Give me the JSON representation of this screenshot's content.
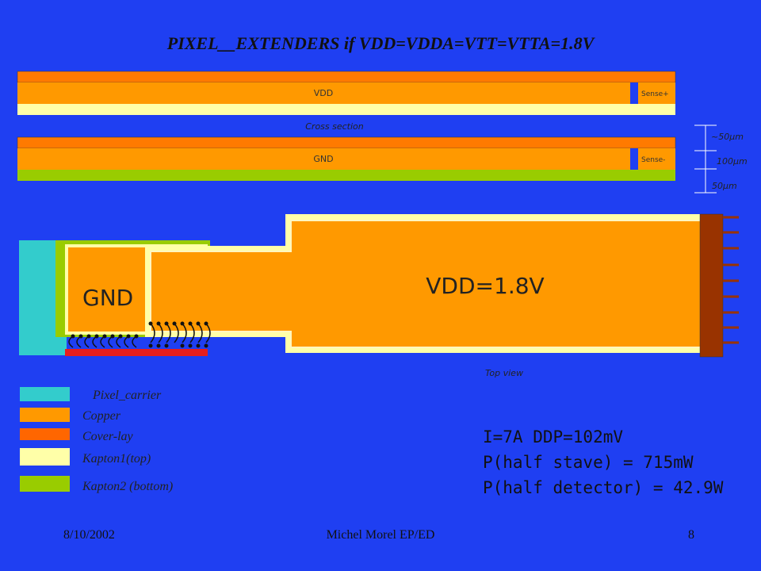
{
  "title": "PIXEL__EXTENDERS if VDD=VDDA=VTT=VTTA=1.8V",
  "cross_section": {
    "label": "Cross section",
    "top_layer": {
      "name": "VDD",
      "sense": "Sense+"
    },
    "bottom_layer": {
      "name": "GND",
      "sense": "Sense-"
    },
    "dimensions": [
      "~50µm",
      "100µm",
      "50µm"
    ]
  },
  "top_view": {
    "label": "Top view",
    "gnd": "GND",
    "vdd": "VDD=1.8V"
  },
  "legend": [
    "Pixel_carrier",
    "Copper",
    "Cover-lay",
    "Kapton1(top)",
    "Kapton2 (bottom)"
  ],
  "notes": [
    "I=7A DDP=102mV",
    "P(half stave) = 715mW",
    "P(half detector) = 42.9W"
  ],
  "footer": {
    "date": "8/10/2002",
    "author": "Michel Morel EP/ED",
    "page": "8"
  }
}
